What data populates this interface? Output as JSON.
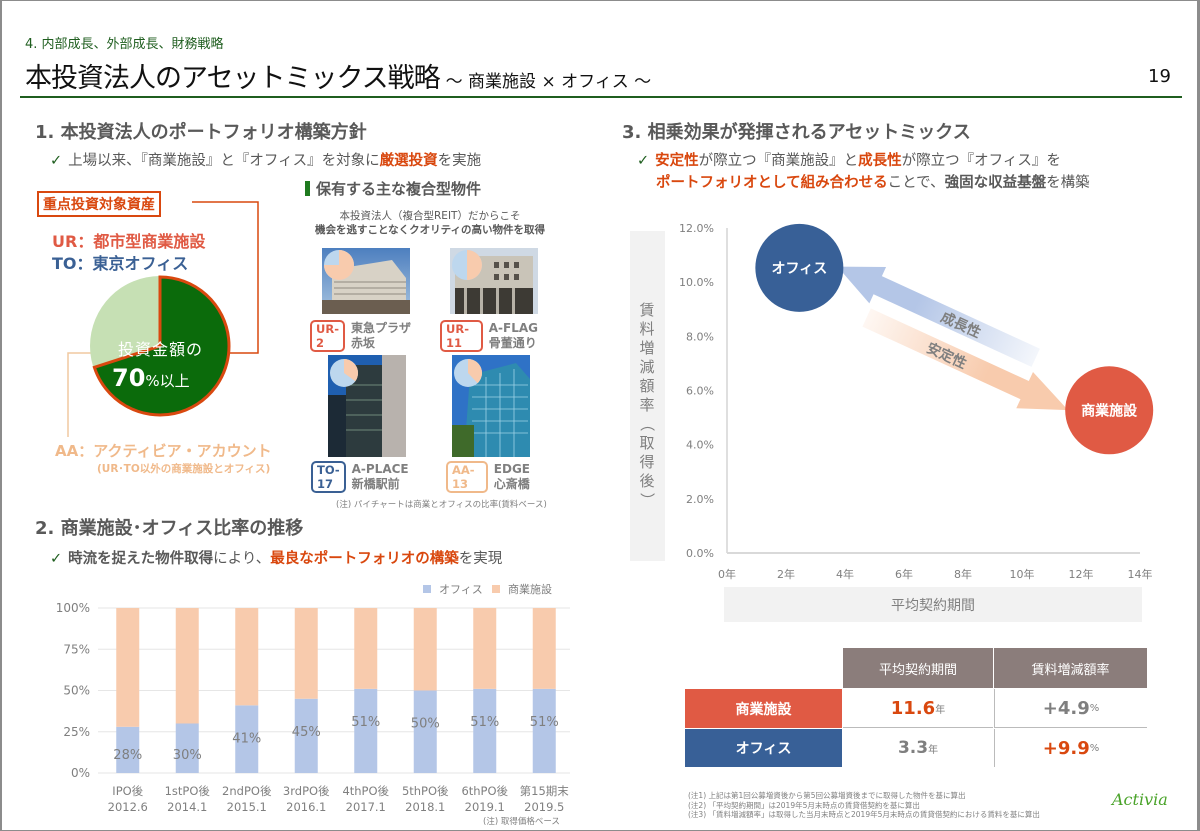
{
  "header": {
    "section": "4. 内部成長、外部成長、財務戦略",
    "title": "本投資法人のアセットミックス戦略",
    "subtitle": "～ 商業施設 × オフィス ～",
    "page_number": "19"
  },
  "section1": {
    "heading": "1. 本投資法人のポートフォリオ構築方針",
    "bullet": {
      "pre": "上場以来、『商業施設』と『オフィス』を対象に",
      "em": "厳選投資",
      "post": "を実施"
    },
    "focus_label": "重点投資対象資産",
    "ur_label": "UR：都市型商業施設",
    "to_label": "TO：東京オフィス",
    "aa_label": "AA：アクティビア・アカウント",
    "aa_sub": "(UR･TO以外の商業施設とオフィス)",
    "pie": {
      "line1": "投資金額の",
      "value": "70",
      "unit": "%以上",
      "focus_share": 0.7
    },
    "properties_heading": "保有する主な複合型物件",
    "properties_note1": "本投資法人（複合型REIT）だからこそ",
    "properties_note2": "機会を逃すことなくクオリティの高い物件を取得",
    "properties": [
      {
        "tag": "UR-2",
        "name1": "東急プラザ",
        "name2": "赤坂",
        "office_share": 0.25
      },
      {
        "tag": "UR-11",
        "name1": "A-FLAG",
        "name2": "骨董通り",
        "office_share": 0.5
      },
      {
        "tag": "TO-17",
        "name1": "A-PLACE",
        "name2": "新橋駅前",
        "office_share": 0.65
      },
      {
        "tag": "AA-13",
        "name1": "EDGE",
        "name2": "心斎橋",
        "office_share": 0.62
      }
    ],
    "pie_note": "(注) パイチャートは商業とオフィスの比率(賃料ベース)"
  },
  "section2": {
    "heading": "2. 商業施設･オフィス比率の推移",
    "bullet": {
      "pre_bold": "時流を捉えた物件取得",
      "pre": "により、",
      "em": "最良なポートフォリオの構築",
      "post": "を実現"
    },
    "note": "(注) 取得価格ベース"
  },
  "chart_data": [
    {
      "type": "bar",
      "stacked": true,
      "categories": [
        "IPO後\n2012.6",
        "1stPO後\n2014.1",
        "2ndPO後\n2015.1",
        "3rdPO後\n2016.1",
        "4thPO後\n2017.1",
        "5thPO後\n2018.1",
        "6thPO後\n2019.1",
        "第15期末\n2019.5"
      ],
      "category_line1": [
        "IPO後",
        "1stPO後",
        "2ndPO後",
        "3rdPO後",
        "4thPO後",
        "5thPO後",
        "6thPO後",
        "第15期末"
      ],
      "category_line2": [
        "2012.6",
        "2014.1",
        "2015.1",
        "2016.1",
        "2017.1",
        "2018.1",
        "2019.1",
        "2019.5"
      ],
      "series": [
        {
          "name": "オフィス",
          "color": "#b4c6e7",
          "values": [
            28,
            30,
            41,
            45,
            51,
            50,
            51,
            51
          ]
        },
        {
          "name": "商業施設",
          "color": "#f8cbad",
          "values": [
            72,
            70,
            59,
            55,
            49,
            50,
            49,
            49
          ]
        }
      ],
      "data_labels": [
        "28%",
        "30%",
        "41%",
        "45%",
        "51%",
        "50%",
        "51%",
        "51%"
      ],
      "yticks": [
        "0%",
        "25%",
        "50%",
        "75%",
        "100%"
      ],
      "ylim": [
        0,
        100
      ],
      "legend": "top-right",
      "grid": true
    },
    {
      "type": "scatter",
      "xlabel": "平均契約期間",
      "ylabel": "賃料増減額率（取得後）",
      "xticks": [
        "0年",
        "2年",
        "4年",
        "6年",
        "8年",
        "10年",
        "12年",
        "14年"
      ],
      "yticks": [
        "0.0%",
        "2.0%",
        "4.0%",
        "6.0%",
        "8.0%",
        "10.0%",
        "12.0%"
      ],
      "xlim": [
        0,
        14
      ],
      "ylim": [
        0,
        12
      ],
      "points": [
        {
          "name": "オフィス",
          "x": 3.3,
          "y": 9.9,
          "color": "#386097"
        },
        {
          "name": "商業施設",
          "x": 11.6,
          "y": 4.9,
          "color": "#e05a44"
        }
      ],
      "arrows": [
        {
          "label": "成長性",
          "from": "商業施設",
          "to": "オフィス",
          "color": "#b4c6e7"
        },
        {
          "label": "安定性",
          "from": "オフィス",
          "to": "商業施設",
          "color": "#f8cbad"
        }
      ]
    }
  ],
  "section3": {
    "heading": "3. 相乗効果が発揮されるアセットミックス",
    "line1": {
      "em1": "安定性",
      "t1": "が際立つ『商業施設』と",
      "em2": "成長性",
      "t2": "が際立つ『オフィス』を"
    },
    "line2": {
      "em": "ポートフォリオとして組み合わせる",
      "t1": "ことで、",
      "bold": "強固な収益基盤",
      "t2": "を構築"
    }
  },
  "table": {
    "headers": [
      "平均契約期間",
      "賃料増減額率"
    ],
    "rows": [
      {
        "label": "商業施設",
        "color": "#e05a44",
        "term": "11.6",
        "term_unit": "年",
        "rate": "+4.9",
        "rate_unit": "%",
        "term_highlight": true,
        "rate_highlight": false
      },
      {
        "label": "オフィス",
        "color": "#386097",
        "term": "3.3",
        "term_unit": "年",
        "rate": "+9.9",
        "rate_unit": "%",
        "term_highlight": false,
        "rate_highlight": true
      }
    ]
  },
  "footnotes": [
    "(注1) 上記は第1回公募増資後から第5回公募増資後までに取得した物件を基に算出",
    "(注2) 「平均契約期間」は2019年5月末時点の賃貸借契約を基に算出",
    "(注3) 「賃料増減額率」は取得した当月末時点と2019年5月末時点の賃貸借契約における賃料を基に算出"
  ],
  "logo": "Activia",
  "colors": {
    "accent_green": "#1f5e1f",
    "accent_red": "#d9480f",
    "office_blue": "#386097",
    "retail_red": "#e05a44",
    "aa_beige": "#f0b98a"
  }
}
